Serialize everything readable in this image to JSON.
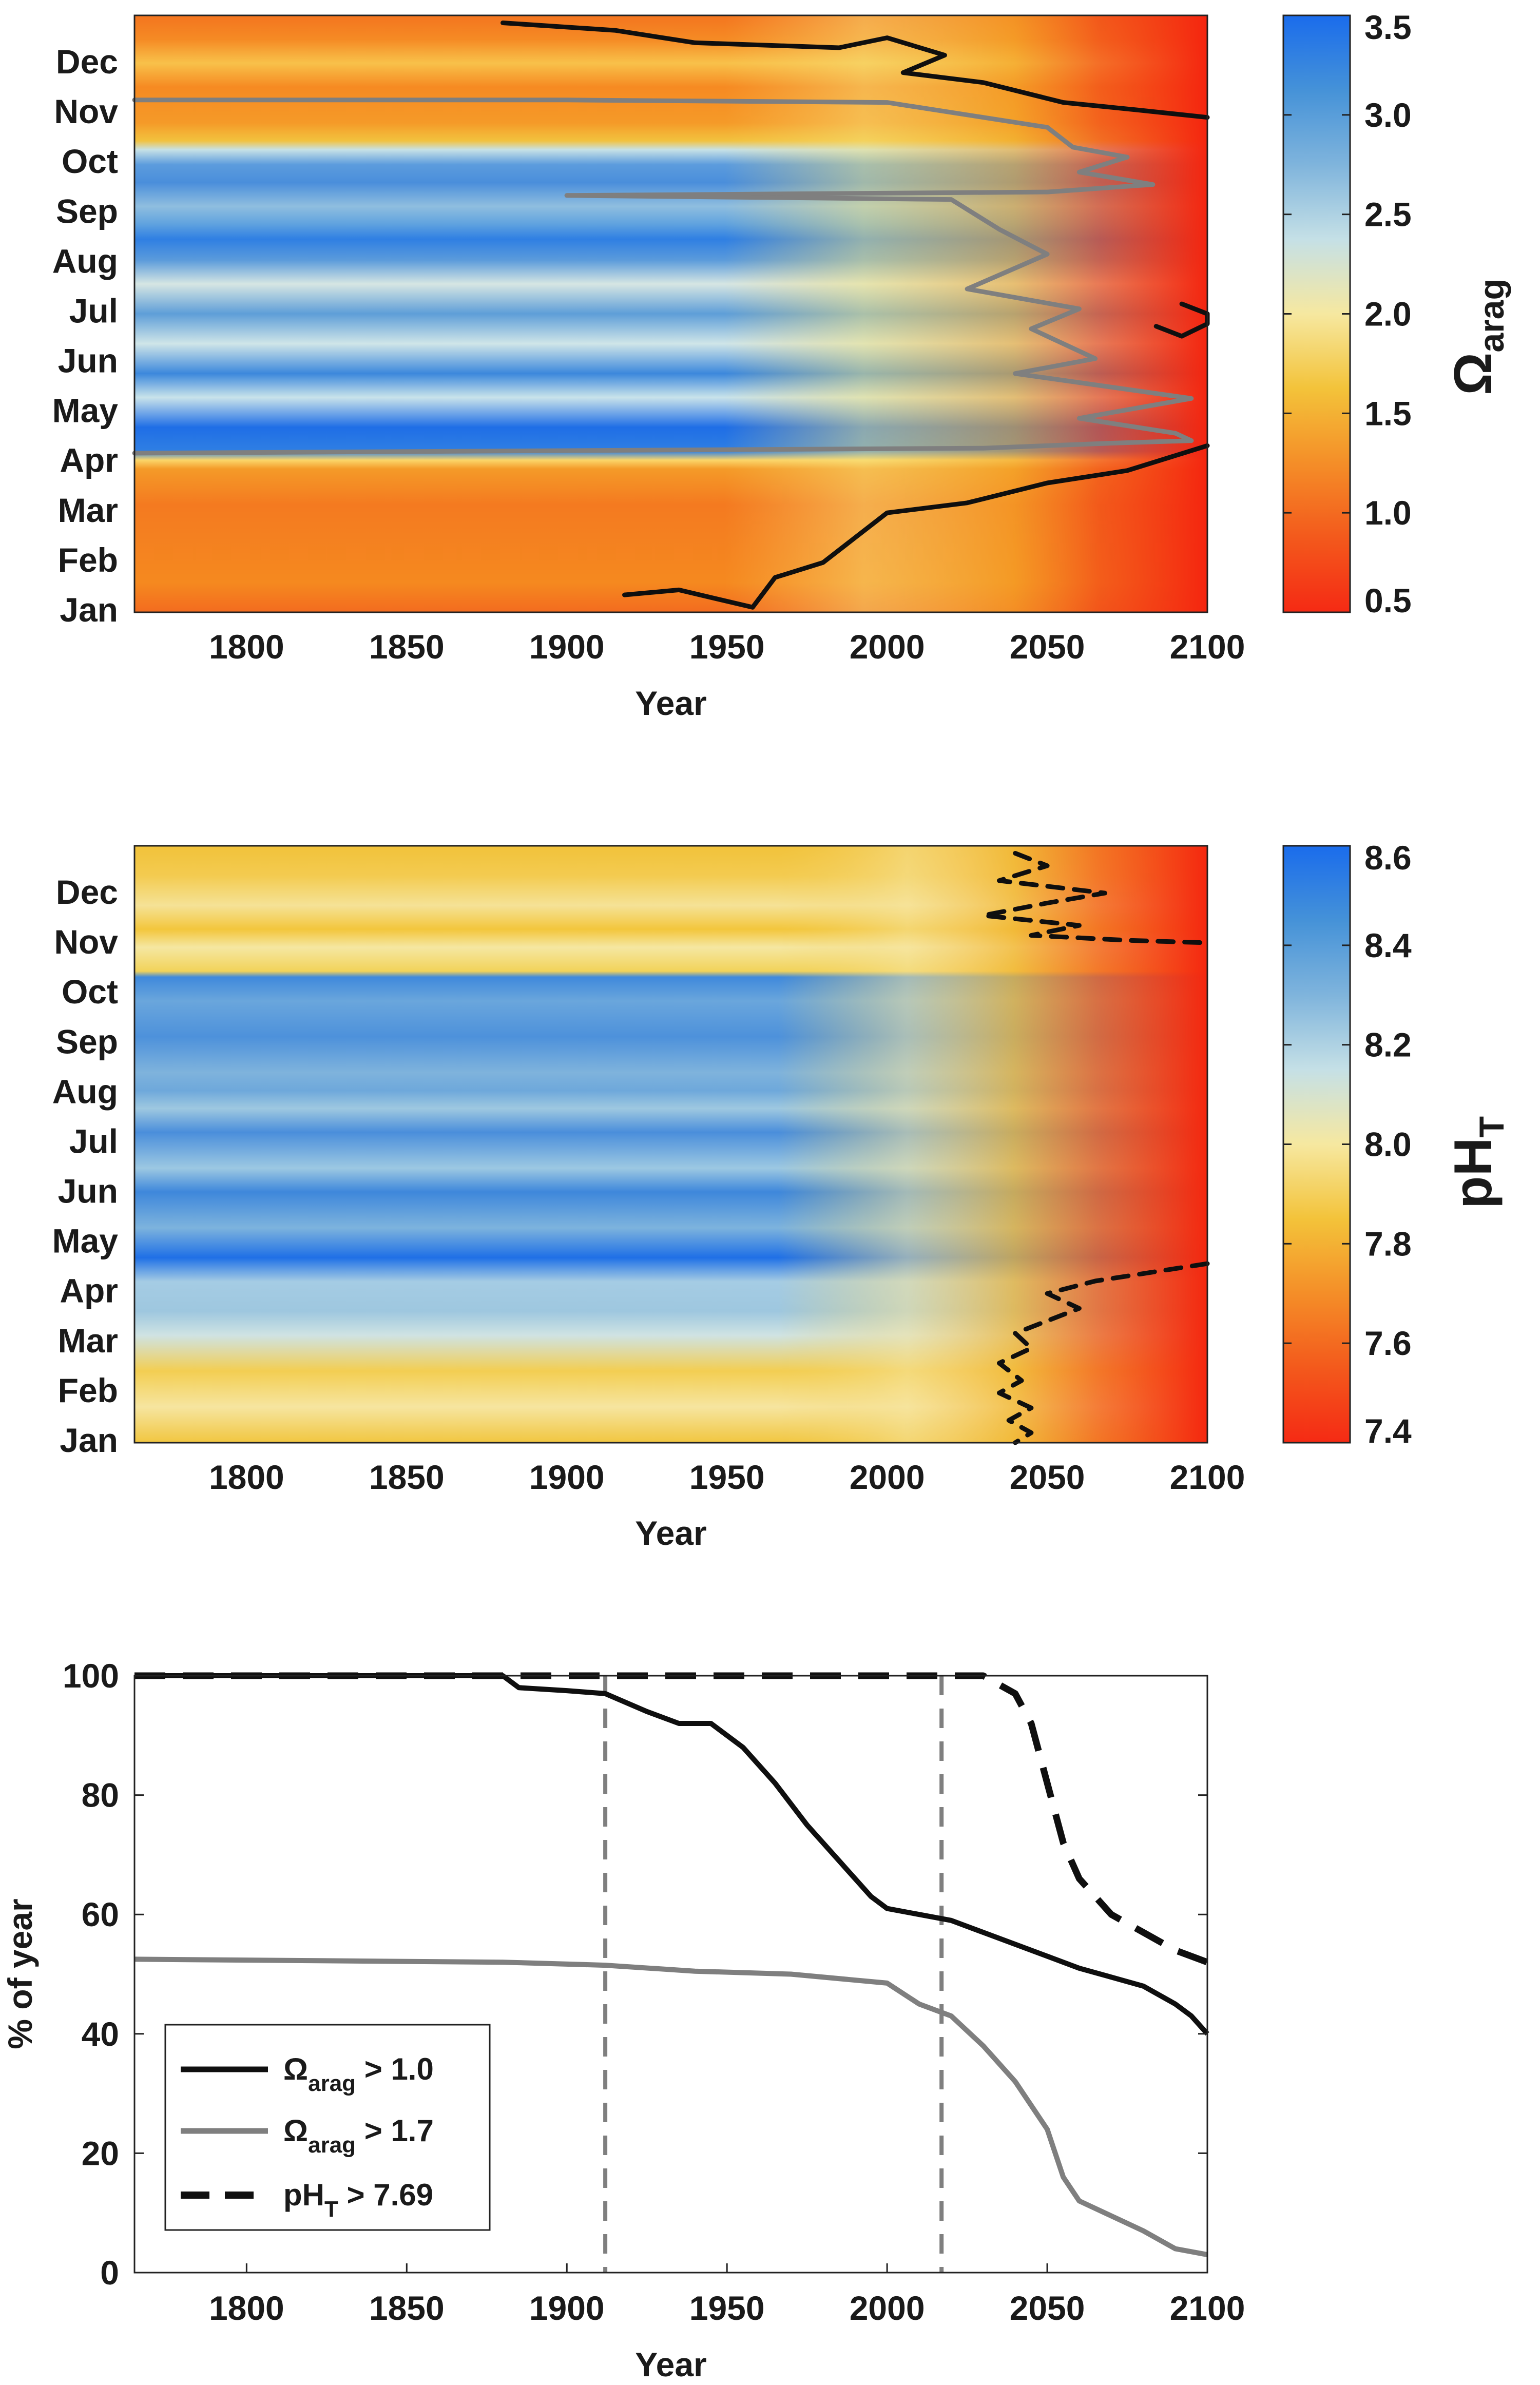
{
  "colors": {
    "ramp": [
      "#f52a14",
      "#f3591c",
      "#f48e28",
      "#f3c33a",
      "#f6e8a0",
      "#c5e0e6",
      "#7fb4dc",
      "#4592d8",
      "#1a6cec"
    ],
    "black_line": "#0f0f0f",
    "gray_line": "#7f7f7f"
  },
  "chart_data": [
    {
      "type": "heatmap",
      "name": "omega_arag",
      "x_range": [
        1765,
        2100
      ],
      "x_ticks": [
        1800,
        1850,
        1900,
        1950,
        2000,
        2050,
        2100
      ],
      "xlabel": "Year",
      "months": [
        "Jan",
        "Feb",
        "Mar",
        "Apr",
        "May",
        "Jun",
        "Jul",
        "Aug",
        "Sep",
        "Oct",
        "Nov",
        "Dec"
      ],
      "colorbar": {
        "min": 0.5,
        "max": 3.5,
        "ticks": [
          "0.5",
          "1.0",
          "1.5",
          "2.0",
          "2.5",
          "3.0",
          "3.5"
        ],
        "label_symbol": "Ω",
        "label_sub": "arag"
      },
      "contours": [
        {
          "name": "omega-1.0-lower",
          "style": "black-solid",
          "points": [
            [
              1918,
              0.35
            ],
            [
              1935,
              0.45
            ],
            [
              1958,
              0.1
            ],
            [
              1965,
              0.7
            ],
            [
              1980,
              1.0
            ],
            [
              1990,
              1.5
            ],
            [
              2000,
              2.0
            ],
            [
              2025,
              2.2
            ],
            [
              2050,
              2.6
            ],
            [
              2075,
              2.85
            ],
            [
              2100,
              3.35
            ]
          ]
        },
        {
          "name": "omega-1.0-upper",
          "style": "black-solid",
          "points": [
            [
              1880,
              11.85
            ],
            [
              1915,
              11.7
            ],
            [
              1940,
              11.45
            ],
            [
              1985,
              11.35
            ],
            [
              2000,
              11.55
            ],
            [
              2018,
              11.2
            ],
            [
              2005,
              10.85
            ],
            [
              2030,
              10.65
            ],
            [
              2055,
              10.25
            ],
            [
              2078,
              10.1
            ],
            [
              2100,
              9.95
            ]
          ]
        },
        {
          "name": "omega-1.0-july-pocket",
          "style": "black-solid",
          "points": [
            [
              2092,
              6.2
            ],
            [
              2100,
              6.0
            ],
            [
              2100,
              5.8
            ],
            [
              2092,
              5.55
            ],
            [
              2084,
              5.75
            ]
          ]
        },
        {
          "name": "omega-1.7-upper",
          "style": "gray-solid",
          "points": [
            [
              1765,
              10.3
            ],
            [
              1900,
              10.3
            ],
            [
              2000,
              10.25
            ],
            [
              2030,
              9.95
            ],
            [
              2050,
              9.75
            ],
            [
              2058,
              9.35
            ],
            [
              2075,
              9.15
            ],
            [
              2060,
              8.85
            ],
            [
              2083,
              8.6
            ],
            [
              2050,
              8.45
            ],
            [
              1900,
              8.38
            ]
          ]
        },
        {
          "name": "omega-1.7-lower",
          "style": "gray-solid",
          "points": [
            [
              2095,
              3.45
            ],
            [
              2070,
              3.4
            ],
            [
              2030,
              3.3
            ],
            [
              1900,
              3.25
            ],
            [
              1765,
              3.2
            ]
          ]
        },
        {
          "name": "omega-1.7-wiggle",
          "style": "gray-solid",
          "points": [
            [
              1900,
              8.38
            ],
            [
              2020,
              8.3
            ],
            [
              2035,
              7.7
            ],
            [
              2050,
              7.2
            ],
            [
              2025,
              6.5
            ],
            [
              2060,
              6.1
            ],
            [
              2045,
              5.7
            ],
            [
              2065,
              5.1
            ],
            [
              2040,
              4.8
            ],
            [
              2095,
              4.3
            ],
            [
              2060,
              3.9
            ],
            [
              2090,
              3.6
            ],
            [
              2095,
              3.45
            ]
          ]
        }
      ]
    },
    {
      "type": "heatmap",
      "name": "pH_T",
      "x_range": [
        1765,
        2100
      ],
      "x_ticks": [
        1800,
        1850,
        1900,
        1950,
        2000,
        2050,
        2100
      ],
      "xlabel": "Year",
      "months": [
        "Jan",
        "Feb",
        "Mar",
        "Apr",
        "May",
        "Jun",
        "Jul",
        "Aug",
        "Sep",
        "Oct",
        "Nov",
        "Dec"
      ],
      "colorbar": {
        "min": 7.4,
        "max": 8.6,
        "ticks": [
          "7.4",
          "7.6",
          "7.8",
          "8.0",
          "8.2",
          "8.4",
          "8.6"
        ],
        "label_main": "pH",
        "label_sub": "T"
      },
      "contours": [
        {
          "name": "ph-7.69-upper",
          "style": "black-dashed",
          "points": [
            [
              2040,
              11.85
            ],
            [
              2050,
              11.6
            ],
            [
              2035,
              11.3
            ],
            [
              2068,
              11.05
            ],
            [
              2050,
              10.85
            ],
            [
              2030,
              10.6
            ],
            [
              2060,
              10.4
            ],
            [
              2045,
              10.2
            ],
            [
              2075,
              10.1
            ],
            [
              2100,
              10.05
            ]
          ]
        },
        {
          "name": "ph-7.69-lower",
          "style": "black-dashed",
          "points": [
            [
              2100,
              3.6
            ],
            [
              2085,
              3.45
            ],
            [
              2065,
              3.25
            ],
            [
              2050,
              3.0
            ],
            [
              2060,
              2.7
            ],
            [
              2050,
              2.45
            ],
            [
              2040,
              2.2
            ],
            [
              2045,
              1.9
            ],
            [
              2035,
              1.6
            ],
            [
              2042,
              1.25
            ],
            [
              2035,
              1.0
            ],
            [
              2045,
              0.7
            ],
            [
              2038,
              0.45
            ],
            [
              2045,
              0.2
            ],
            [
              2040,
              0.0
            ]
          ]
        }
      ]
    },
    {
      "type": "line",
      "name": "percent_of_year",
      "x_range": [
        1765,
        2100
      ],
      "y_range": [
        0,
        100
      ],
      "x_ticks": [
        1800,
        1850,
        1900,
        1950,
        2000,
        2050,
        2100
      ],
      "y_ticks": [
        0,
        20,
        40,
        60,
        80,
        100
      ],
      "xlabel": "Year",
      "ylabel": "% of year",
      "vlines": [
        1912,
        2017
      ],
      "legend_position": "bottom-left",
      "series": [
        {
          "name": "omega > 1.0",
          "style": "black-solid",
          "legend": {
            "symbol": "Ω",
            "sub": "arag",
            "rest": " > 1.0"
          },
          "points": [
            [
              1765,
              100
            ],
            [
              1880,
              100
            ],
            [
              1885,
              98
            ],
            [
              1900,
              97.5
            ],
            [
              1912,
              97
            ],
            [
              1925,
              94
            ],
            [
              1935,
              92
            ],
            [
              1945,
              92
            ],
            [
              1955,
              88
            ],
            [
              1965,
              82
            ],
            [
              1975,
              75
            ],
            [
              1985,
              69
            ],
            [
              1995,
              63
            ],
            [
              2000,
              61
            ],
            [
              2010,
              60
            ],
            [
              2020,
              59
            ],
            [
              2030,
              57
            ],
            [
              2040,
              55
            ],
            [
              2050,
              53
            ],
            [
              2060,
              51
            ],
            [
              2070,
              49.5
            ],
            [
              2080,
              48
            ],
            [
              2090,
              45
            ],
            [
              2095,
              43
            ],
            [
              2100,
              40
            ]
          ]
        },
        {
          "name": "omega > 1.7",
          "style": "gray-solid",
          "legend": {
            "symbol": "Ω",
            "sub": "arag",
            "rest": " > 1.7"
          },
          "points": [
            [
              1765,
              52.5
            ],
            [
              1880,
              52
            ],
            [
              1912,
              51.5
            ],
            [
              1940,
              50.5
            ],
            [
              1970,
              50
            ],
            [
              2000,
              48.5
            ],
            [
              2010,
              45
            ],
            [
              2020,
              43
            ],
            [
              2030,
              38
            ],
            [
              2040,
              32
            ],
            [
              2050,
              24
            ],
            [
              2055,
              16
            ],
            [
              2060,
              12
            ],
            [
              2070,
              9.5
            ],
            [
              2080,
              7
            ],
            [
              2090,
              4
            ],
            [
              2100,
              3
            ]
          ]
        },
        {
          "name": "pH > 7.69",
          "style": "black-dashed",
          "legend": {
            "main": "pH",
            "sub": "T",
            "rest": " > 7.69"
          },
          "points": [
            [
              1765,
              100
            ],
            [
              2030,
              100
            ],
            [
              2040,
              97
            ],
            [
              2045,
              92
            ],
            [
              2050,
              82
            ],
            [
              2055,
              72
            ],
            [
              2060,
              66
            ],
            [
              2070,
              60
            ],
            [
              2080,
              57
            ],
            [
              2090,
              54
            ],
            [
              2100,
              52
            ]
          ]
        }
      ]
    }
  ]
}
